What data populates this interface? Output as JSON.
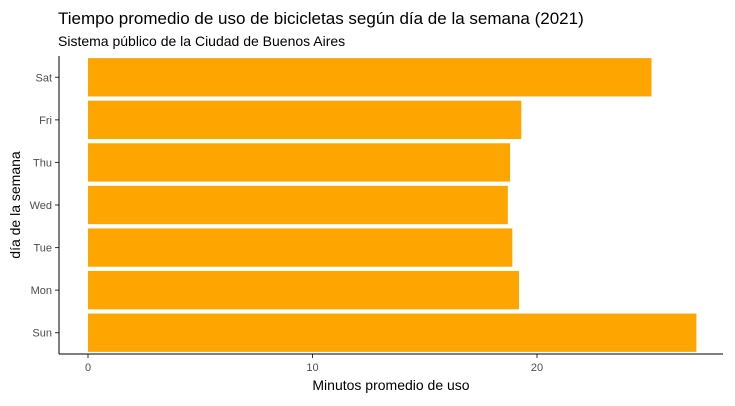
{
  "chart_data": {
    "type": "bar",
    "orientation": "horizontal",
    "title": "Tiempo promedio de uso de bicicletas según día de la semana (2021)",
    "subtitle": "Sistema público de la Ciudad de Buenos Aires",
    "xlabel": "Minutos promedio de uso",
    "ylabel": "día de la semana",
    "categories": [
      "Sun",
      "Mon",
      "Tue",
      "Wed",
      "Thu",
      "Fri",
      "Sat"
    ],
    "values": [
      27.1,
      19.2,
      18.9,
      18.7,
      18.8,
      19.3,
      25.1
    ],
    "xlim": [
      0,
      28
    ],
    "xticks": [
      0,
      10,
      20
    ],
    "grid": false,
    "bar_color": "#FFA500"
  }
}
